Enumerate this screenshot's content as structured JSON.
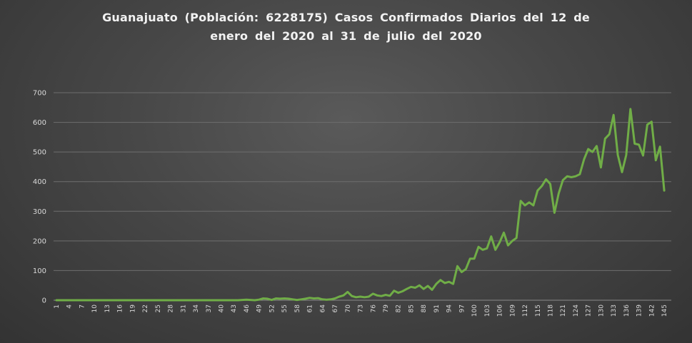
{
  "title_line1": "Guanajuato (Población: 6228175) Casos Confirmados Diarios del 12 de",
  "title_line2": "enero del 2020 al 31 de julio del 2020",
  "colors": {
    "line": "#70ad47",
    "grid": "#6e6e6e",
    "text": "#d9d9d9"
  },
  "chart_data": {
    "type": "line",
    "title": "Guanajuato (Población: 6228175) Casos Confirmados Diarios del 12 de enero del 2020 al 31 de julio del 2020",
    "xlabel": "",
    "ylabel": "",
    "ylim": [
      0,
      700
    ],
    "yticks": [
      0,
      100,
      200,
      300,
      400,
      500,
      600,
      700
    ],
    "xlim": [
      1,
      146
    ],
    "xticks": [
      1,
      4,
      7,
      10,
      13,
      16,
      19,
      22,
      25,
      28,
      31,
      34,
      37,
      40,
      43,
      46,
      49,
      52,
      55,
      58,
      61,
      64,
      67,
      70,
      73,
      76,
      79,
      82,
      85,
      88,
      91,
      94,
      97,
      100,
      103,
      106,
      109,
      112,
      115,
      118,
      121,
      124,
      127,
      130,
      133,
      136,
      139,
      142,
      145
    ],
    "grid": "horizontal",
    "legend": "none",
    "series": [
      {
        "values": [
          0,
          0,
          0,
          0,
          0,
          0,
          0,
          0,
          0,
          0,
          0,
          0,
          0,
          0,
          0,
          0,
          0,
          0,
          0,
          0,
          0,
          0,
          0,
          0,
          0,
          0,
          0,
          0,
          0,
          0,
          0,
          0,
          0,
          0,
          0,
          0,
          0,
          0,
          0,
          0,
          0,
          0,
          0,
          0,
          1,
          2,
          1,
          0,
          2,
          6,
          5,
          1,
          6,
          5,
          6,
          5,
          3,
          1,
          3,
          5,
          8,
          6,
          7,
          3,
          2,
          3,
          6,
          12,
          16,
          28,
          14,
          10,
          12,
          10,
          12,
          22,
          16,
          14,
          18,
          15,
          32,
          25,
          30,
          38,
          45,
          42,
          50,
          38,
          48,
          35,
          55,
          68,
          58,
          62,
          55,
          115,
          95,
          105,
          140,
          140,
          180,
          170,
          175,
          215,
          170,
          195,
          228,
          185,
          200,
          210,
          335,
          320,
          330,
          320,
          370,
          385,
          408,
          392,
          295,
          360,
          405,
          418,
          415,
          418,
          425,
          475,
          510,
          500,
          520,
          448,
          545,
          560,
          625,
          490,
          432,
          490,
          645,
          528,
          525,
          488,
          592,
          602,
          472,
          518,
          370
        ]
      }
    ]
  }
}
